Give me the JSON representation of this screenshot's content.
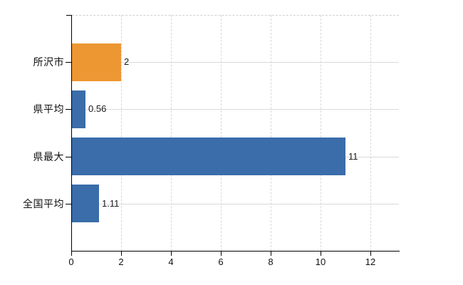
{
  "chart_data": {
    "type": "bar",
    "orientation": "horizontal",
    "title": "",
    "xlabel": "",
    "ylabel": "",
    "categories": [
      "所沢市",
      "県平均",
      "県最大",
      "全国平均"
    ],
    "values": [
      2,
      0.56,
      11,
      1.11
    ],
    "value_labels": [
      "2",
      "0.56",
      "11",
      "1.11"
    ],
    "bar_colors": [
      "#ED9733",
      "#3A6DAA",
      "#3A6DAA",
      "#3A6DAA"
    ],
    "x_ticks": [
      0,
      2,
      4,
      6,
      8,
      10,
      12
    ],
    "x_tick_labels": [
      "0",
      "2",
      "4",
      "6",
      "8",
      "10",
      "12"
    ],
    "xlim": [
      0,
      13.17
    ],
    "grid": true,
    "legend": false,
    "colors": {
      "axis": "#000000",
      "gridline": "#d8d8d8",
      "row_gridline": "#d9d9d9",
      "text": "#111111",
      "value_text": "#1a1a1a",
      "background": "#ffffff",
      "accent_orange": "#ED9733",
      "accent_blue": "#3A6DAA"
    }
  }
}
